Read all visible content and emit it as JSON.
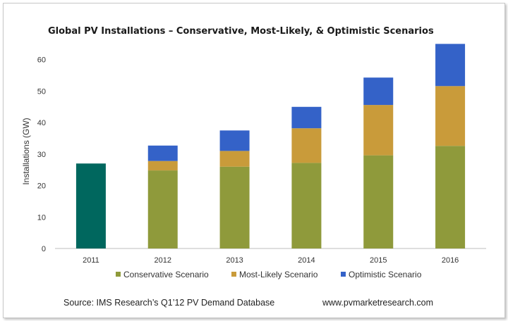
{
  "chart_data": {
    "type": "bar",
    "stacked": true,
    "title": "Global PV Installations – Conservative, Most-Likely, & Optimistic Scenarios",
    "xlabel": "",
    "ylabel": "Installations (GW)",
    "ylim": [
      0,
      70
    ],
    "yticks": [
      0,
      10,
      20,
      30,
      40,
      50,
      60
    ],
    "grid": false,
    "legend_position": "bottom",
    "categories": [
      "2011",
      "2012",
      "2013",
      "2014",
      "2015",
      "2016"
    ],
    "actual": {
      "category": "2011",
      "value": 27,
      "color": "#00675e"
    },
    "series": [
      {
        "name": "Conservative Scenario",
        "color": "#8f9a3b",
        "values": [
          null,
          24.8,
          26,
          27.2,
          29.6,
          32.6
        ]
      },
      {
        "name": "Most-Likely Scenario",
        "color": "#c99b3a",
        "values": [
          null,
          3.0,
          5.0,
          11.0,
          16.0,
          19.0
        ]
      },
      {
        "name": "Optimistic Scenario",
        "color": "#3462c8",
        "values": [
          null,
          4.9,
          6.5,
          6.8,
          8.7,
          13.4
        ]
      }
    ]
  },
  "footer": {
    "source": "Source: IMS Research’s Q1’12 PV Demand Database",
    "website": "www.pvmarketresearch.com"
  }
}
